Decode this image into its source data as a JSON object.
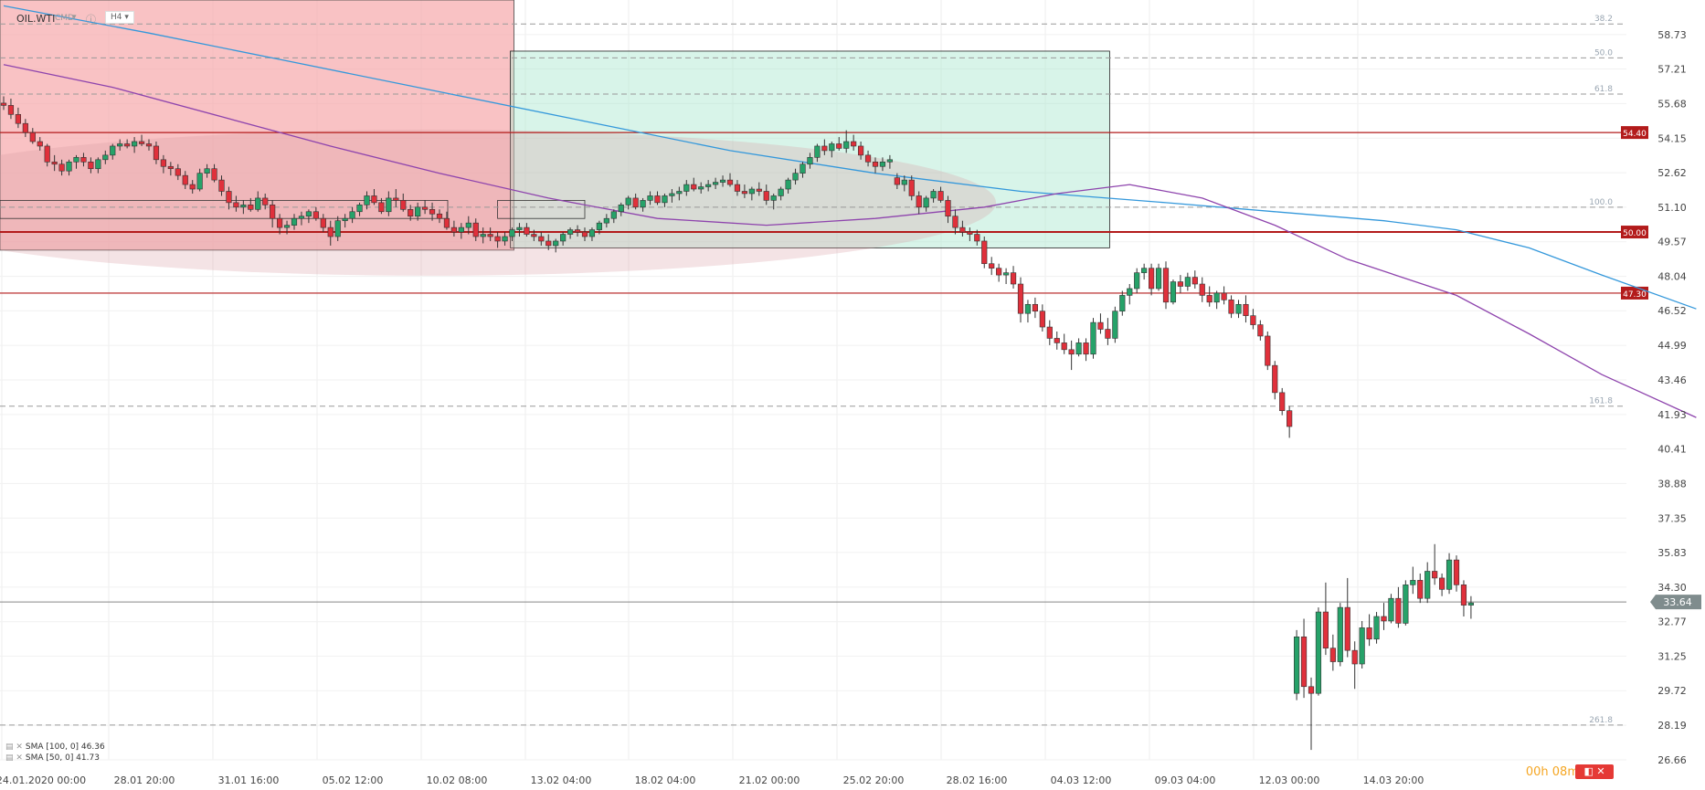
{
  "header": {
    "symbol": "OIL.WTI",
    "cmd": "CMD",
    "caret": "▾",
    "info": "ⓘ",
    "timeframe": "H4 ▾"
  },
  "legend": [
    {
      "label": "SMA [100, 0] 46.36"
    },
    {
      "label": "SMA [50, 0] 41.73"
    }
  ],
  "timer": {
    "text": "00h 08m"
  },
  "controls": {
    "text": "◧ ✕"
  },
  "colors": {
    "up": "#26a269",
    "down": "#e0303b",
    "sma100": "#3498db",
    "sma50": "#8e44ad",
    "level": "#b31b1b",
    "pricetag": "#7f8c8d"
  },
  "chart_data": {
    "type": "candlestick",
    "ylim": [
      26.66,
      60.26
    ],
    "yticks": [
      26.66,
      28.19,
      29.72,
      31.25,
      32.77,
      34.3,
      35.83,
      37.35,
      38.88,
      40.41,
      41.93,
      43.46,
      44.99,
      46.52,
      48.04,
      49.57,
      51.1,
      52.62,
      54.15,
      55.68,
      57.21,
      58.73
    ],
    "xticks": [
      "24.01.2020  00:00",
      "28.01  20:00",
      "31.01  16:00",
      "05.02  12:00",
      "10.02  08:00",
      "13.02  04:00",
      "18.02  04:00",
      "21.02  00:00",
      "25.02  20:00",
      "28.02  16:00",
      "04.03  12:00",
      "09.03  04:00",
      "12.03  00:00",
      "14.03  20:00"
    ],
    "last_price": 33.64,
    "levels": [
      54.4,
      50.0,
      47.3
    ],
    "level_labels": [
      "54.40",
      "50.00",
      "47.30"
    ],
    "fib": [
      {
        "label": "38.2",
        "value": 59.2
      },
      {
        "label": "50.0",
        "value": 57.7
      },
      {
        "label": "61.8",
        "value": 56.1
      },
      {
        "label": "100.0",
        "value": 51.1
      },
      {
        "label": "161.8",
        "value": 42.3
      },
      {
        "label": "261.8",
        "value": 28.2
      }
    ],
    "zones": [
      {
        "type": "sell",
        "from_index": 0,
        "to_index": 70,
        "high": 60.26,
        "low": 49.2
      },
      {
        "type": "buy",
        "from_index": 70,
        "to_index": 152,
        "high": 58.0,
        "low": 49.3
      }
    ],
    "series": [
      {
        "name": "SMA [100, 0] 46.36",
        "values": [
          [
            0,
            60.0
          ],
          [
            20,
            58.8
          ],
          [
            40,
            57.5
          ],
          [
            60,
            56.2
          ],
          [
            80,
            54.9
          ],
          [
            100,
            53.6
          ],
          [
            120,
            52.6
          ],
          [
            140,
            51.8
          ],
          [
            160,
            51.3
          ],
          [
            175,
            50.9
          ],
          [
            190,
            50.5
          ],
          [
            200,
            50.1
          ],
          [
            210,
            49.3
          ],
          [
            220,
            48.1
          ],
          [
            233,
            46.6
          ]
        ]
      },
      {
        "name": "SMA [50, 0] 41.73",
        "values": [
          [
            0,
            57.4
          ],
          [
            15,
            56.4
          ],
          [
            30,
            55.1
          ],
          [
            45,
            53.8
          ],
          [
            60,
            52.6
          ],
          [
            75,
            51.5
          ],
          [
            90,
            50.6
          ],
          [
            105,
            50.3
          ],
          [
            120,
            50.6
          ],
          [
            135,
            51.1
          ],
          [
            145,
            51.7
          ],
          [
            155,
            52.1
          ],
          [
            165,
            51.5
          ],
          [
            175,
            50.3
          ],
          [
            185,
            48.8
          ],
          [
            200,
            47.2
          ],
          [
            210,
            45.5
          ],
          [
            220,
            43.7
          ],
          [
            233,
            41.8
          ]
        ]
      }
    ],
    "ohlc": [
      [
        55.7,
        56.0,
        55.4,
        55.6
      ],
      [
        55.6,
        55.9,
        55.0,
        55.2
      ],
      [
        55.2,
        55.5,
        54.6,
        54.8
      ],
      [
        54.8,
        55.0,
        54.2,
        54.4
      ],
      [
        54.4,
        54.6,
        53.9,
        54.0
      ],
      [
        54.0,
        54.2,
        53.6,
        53.8
      ],
      [
        53.8,
        53.9,
        52.9,
        53.1
      ],
      [
        53.1,
        53.4,
        52.7,
        53.0
      ],
      [
        53.0,
        53.2,
        52.5,
        52.7
      ],
      [
        52.7,
        53.2,
        52.5,
        53.1
      ],
      [
        53.1,
        53.4,
        52.8,
        53.3
      ],
      [
        53.3,
        53.5,
        52.9,
        53.1
      ],
      [
        53.1,
        53.3,
        52.6,
        52.8
      ],
      [
        52.8,
        53.3,
        52.6,
        53.2
      ],
      [
        53.2,
        53.6,
        53.0,
        53.4
      ],
      [
        53.4,
        53.9,
        53.2,
        53.8
      ],
      [
        53.8,
        54.1,
        53.6,
        53.9
      ],
      [
        53.9,
        54.1,
        53.7,
        53.8
      ],
      [
        53.8,
        54.2,
        53.5,
        54.0
      ],
      [
        54.0,
        54.3,
        53.8,
        53.9
      ],
      [
        53.9,
        54.1,
        53.6,
        53.8
      ],
      [
        53.8,
        54.0,
        53.0,
        53.2
      ],
      [
        53.2,
        53.4,
        52.6,
        52.9
      ],
      [
        52.9,
        53.1,
        52.5,
        52.8
      ],
      [
        52.8,
        53.0,
        52.3,
        52.5
      ],
      [
        52.5,
        52.7,
        51.9,
        52.1
      ],
      [
        52.1,
        52.3,
        51.7,
        51.9
      ],
      [
        51.9,
        52.8,
        51.8,
        52.6
      ],
      [
        52.6,
        53.0,
        52.4,
        52.8
      ],
      [
        52.8,
        53.0,
        52.2,
        52.3
      ],
      [
        52.3,
        52.5,
        51.6,
        51.8
      ],
      [
        51.8,
        52.0,
        51.0,
        51.3
      ],
      [
        51.3,
        51.6,
        50.9,
        51.1
      ],
      [
        51.1,
        51.4,
        50.8,
        51.2
      ],
      [
        51.2,
        51.5,
        50.9,
        51.0
      ],
      [
        51.0,
        51.8,
        50.9,
        51.5
      ],
      [
        51.5,
        51.7,
        51.0,
        51.2
      ],
      [
        51.2,
        51.4,
        50.2,
        50.6
      ],
      [
        50.6,
        50.8,
        49.9,
        50.2
      ],
      [
        50.2,
        50.5,
        49.9,
        50.3
      ],
      [
        50.3,
        50.8,
        50.1,
        50.6
      ],
      [
        50.6,
        50.9,
        50.3,
        50.7
      ],
      [
        50.7,
        51.0,
        50.4,
        50.9
      ],
      [
        50.9,
        51.1,
        50.5,
        50.6
      ],
      [
        50.6,
        50.8,
        50.0,
        50.2
      ],
      [
        50.2,
        50.5,
        49.4,
        49.8
      ],
      [
        49.8,
        50.7,
        49.6,
        50.5
      ],
      [
        50.5,
        50.8,
        50.2,
        50.6
      ],
      [
        50.6,
        51.1,
        50.4,
        50.9
      ],
      [
        50.9,
        51.3,
        50.7,
        51.2
      ],
      [
        51.2,
        51.8,
        51.0,
        51.6
      ],
      [
        51.6,
        51.9,
        51.2,
        51.3
      ],
      [
        51.3,
        51.5,
        50.8,
        50.9
      ],
      [
        50.9,
        51.8,
        50.7,
        51.5
      ],
      [
        51.5,
        51.9,
        51.1,
        51.4
      ],
      [
        51.4,
        51.7,
        50.9,
        51.0
      ],
      [
        51.0,
        51.2,
        50.5,
        50.7
      ],
      [
        50.7,
        51.3,
        50.5,
        51.1
      ],
      [
        51.1,
        51.4,
        50.8,
        51.0
      ],
      [
        51.0,
        51.3,
        50.5,
        50.8
      ],
      [
        50.8,
        51.0,
        50.4,
        50.6
      ],
      [
        50.6,
        50.9,
        50.1,
        50.2
      ],
      [
        50.2,
        50.5,
        49.8,
        50.0
      ],
      [
        50.0,
        50.4,
        49.7,
        50.2
      ],
      [
        50.2,
        50.7,
        49.9,
        50.4
      ],
      [
        50.4,
        50.6,
        49.6,
        49.8
      ],
      [
        49.8,
        50.2,
        49.5,
        49.9
      ],
      [
        49.9,
        50.2,
        49.6,
        49.8
      ],
      [
        49.8,
        50.0,
        49.3,
        49.6
      ],
      [
        49.6,
        50.0,
        49.4,
        49.8
      ],
      [
        49.8,
        50.2,
        49.6,
        50.1
      ],
      [
        50.1,
        50.4,
        49.8,
        50.2
      ],
      [
        50.2,
        50.4,
        49.8,
        49.9
      ],
      [
        49.9,
        50.1,
        49.6,
        49.8
      ],
      [
        49.8,
        50.0,
        49.4,
        49.6
      ],
      [
        49.6,
        49.9,
        49.2,
        49.4
      ],
      [
        49.4,
        49.7,
        49.1,
        49.6
      ],
      [
        49.6,
        50.0,
        49.4,
        49.9
      ],
      [
        49.9,
        50.2,
        49.7,
        50.1
      ],
      [
        50.1,
        50.3,
        49.8,
        50.0
      ],
      [
        50.0,
        50.2,
        49.6,
        49.8
      ],
      [
        49.8,
        50.2,
        49.6,
        50.1
      ],
      [
        50.1,
        50.5,
        49.9,
        50.4
      ],
      [
        50.4,
        50.8,
        50.2,
        50.6
      ],
      [
        50.6,
        51.0,
        50.4,
        50.9
      ],
      [
        50.9,
        51.3,
        50.7,
        51.2
      ],
      [
        51.2,
        51.6,
        51.0,
        51.5
      ],
      [
        51.5,
        51.7,
        51.0,
        51.1
      ],
      [
        51.1,
        51.5,
        50.9,
        51.4
      ],
      [
        51.4,
        51.8,
        51.2,
        51.6
      ],
      [
        51.6,
        51.8,
        51.2,
        51.3
      ],
      [
        51.3,
        51.7,
        51.1,
        51.6
      ],
      [
        51.6,
        51.9,
        51.3,
        51.7
      ],
      [
        51.7,
        52.0,
        51.4,
        51.8
      ],
      [
        51.8,
        52.3,
        51.6,
        52.1
      ],
      [
        52.1,
        52.4,
        51.8,
        51.9
      ],
      [
        51.9,
        52.2,
        51.7,
        52.0
      ],
      [
        52.0,
        52.3,
        51.8,
        52.1
      ],
      [
        52.1,
        52.4,
        51.9,
        52.2
      ],
      [
        52.2,
        52.5,
        52.0,
        52.3
      ],
      [
        52.3,
        52.6,
        52.0,
        52.1
      ],
      [
        52.1,
        52.3,
        51.6,
        51.8
      ],
      [
        51.8,
        52.1,
        51.5,
        51.7
      ],
      [
        51.7,
        52.0,
        51.4,
        51.9
      ],
      [
        51.9,
        52.2,
        51.6,
        51.8
      ],
      [
        51.8,
        52.1,
        51.2,
        51.4
      ],
      [
        51.4,
        51.7,
        51.0,
        51.6
      ],
      [
        51.6,
        52.0,
        51.4,
        51.9
      ],
      [
        51.9,
        52.4,
        51.7,
        52.3
      ],
      [
        52.3,
        52.8,
        52.1,
        52.6
      ],
      [
        52.6,
        53.1,
        52.4,
        53.0
      ],
      [
        53.0,
        53.5,
        52.8,
        53.3
      ],
      [
        53.3,
        53.9,
        53.1,
        53.8
      ],
      [
        53.8,
        54.1,
        53.4,
        53.6
      ],
      [
        53.6,
        54.0,
        53.3,
        53.9
      ],
      [
        53.9,
        54.2,
        53.6,
        53.7
      ],
      [
        53.7,
        54.5,
        53.5,
        54.0
      ],
      [
        54.0,
        54.3,
        53.6,
        53.8
      ],
      [
        53.8,
        54.0,
        53.2,
        53.4
      ],
      [
        53.4,
        53.6,
        52.9,
        53.1
      ],
      [
        53.1,
        53.3,
        52.6,
        52.9
      ],
      [
        52.9,
        53.3,
        52.7,
        53.1
      ],
      [
        53.1,
        53.4,
        52.8,
        53.2
      ],
      [
        52.4,
        52.6,
        51.9,
        52.1
      ],
      [
        52.1,
        52.5,
        51.8,
        52.3
      ],
      [
        52.3,
        52.5,
        51.4,
        51.6
      ],
      [
        51.6,
        51.8,
        50.8,
        51.1
      ],
      [
        51.1,
        51.6,
        50.9,
        51.5
      ],
      [
        51.5,
        51.9,
        51.3,
        51.8
      ],
      [
        51.8,
        52.0,
        51.3,
        51.4
      ],
      [
        51.4,
        51.6,
        50.4,
        50.7
      ],
      [
        50.7,
        51.0,
        49.9,
        50.2
      ],
      [
        50.2,
        50.5,
        49.8,
        50.0
      ],
      [
        50.0,
        50.2,
        49.6,
        49.9
      ],
      [
        49.9,
        50.1,
        49.4,
        49.6
      ],
      [
        49.6,
        49.8,
        48.4,
        48.6
      ],
      [
        48.6,
        48.9,
        48.1,
        48.4
      ],
      [
        48.4,
        48.6,
        47.8,
        48.1
      ],
      [
        48.1,
        48.4,
        47.7,
        48.2
      ],
      [
        48.2,
        48.5,
        47.5,
        47.7
      ],
      [
        47.7,
        48.0,
        46.0,
        46.4
      ],
      [
        46.4,
        47.0,
        46.0,
        46.8
      ],
      [
        46.8,
        47.1,
        46.2,
        46.5
      ],
      [
        46.5,
        46.8,
        45.6,
        45.8
      ],
      [
        45.8,
        46.1,
        45.0,
        45.3
      ],
      [
        45.3,
        45.6,
        44.8,
        45.1
      ],
      [
        45.1,
        45.5,
        44.6,
        44.8
      ],
      [
        44.8,
        45.2,
        43.9,
        44.6
      ],
      [
        44.6,
        45.3,
        44.5,
        45.1
      ],
      [
        45.1,
        45.3,
        44.3,
        44.6
      ],
      [
        44.6,
        46.2,
        44.4,
        46.0
      ],
      [
        46.0,
        46.4,
        45.5,
        45.7
      ],
      [
        45.7,
        46.2,
        45.0,
        45.3
      ],
      [
        45.3,
        46.7,
        45.1,
        46.5
      ],
      [
        46.5,
        47.4,
        46.3,
        47.2
      ],
      [
        47.2,
        47.7,
        46.8,
        47.5
      ],
      [
        47.5,
        48.4,
        47.3,
        48.2
      ],
      [
        48.2,
        48.6,
        47.9,
        48.4
      ],
      [
        48.4,
        48.6,
        47.2,
        47.5
      ],
      [
        47.5,
        48.6,
        47.4,
        48.4
      ],
      [
        48.4,
        48.7,
        46.6,
        46.9
      ],
      [
        46.9,
        47.9,
        46.8,
        47.8
      ],
      [
        47.8,
        48.1,
        47.3,
        47.6
      ],
      [
        47.6,
        48.2,
        47.4,
        48.0
      ],
      [
        48.0,
        48.3,
        47.5,
        47.7
      ],
      [
        47.7,
        48.0,
        46.9,
        47.2
      ],
      [
        47.2,
        47.6,
        46.7,
        46.9
      ],
      [
        46.9,
        47.4,
        46.6,
        47.3
      ],
      [
        47.3,
        47.6,
        46.8,
        47.0
      ],
      [
        47.0,
        47.2,
        46.2,
        46.4
      ],
      [
        46.4,
        47.0,
        46.2,
        46.8
      ],
      [
        46.8,
        47.2,
        46.0,
        46.3
      ],
      [
        46.3,
        46.6,
        45.7,
        45.9
      ],
      [
        45.9,
        46.1,
        45.2,
        45.4
      ],
      [
        45.4,
        45.6,
        43.9,
        44.1
      ],
      [
        44.1,
        44.3,
        42.6,
        42.9
      ],
      [
        42.9,
        43.1,
        41.9,
        42.1
      ],
      [
        42.1,
        42.3,
        40.9,
        41.4
      ],
      [
        29.6,
        32.4,
        29.3,
        32.1
      ],
      [
        32.1,
        32.9,
        29.4,
        29.9
      ],
      [
        29.9,
        30.3,
        27.1,
        29.6
      ],
      [
        29.6,
        33.4,
        29.5,
        33.2
      ],
      [
        33.2,
        34.5,
        31.3,
        31.6
      ],
      [
        31.6,
        32.2,
        30.6,
        31.0
      ],
      [
        31.0,
        33.6,
        30.8,
        33.4
      ],
      [
        33.4,
        34.7,
        31.2,
        31.5
      ],
      [
        31.5,
        31.9,
        29.8,
        30.9
      ],
      [
        30.9,
        32.8,
        30.7,
        32.5
      ],
      [
        32.5,
        33.1,
        31.7,
        32.0
      ],
      [
        32.0,
        33.2,
        31.8,
        33.0
      ],
      [
        33.0,
        33.6,
        32.4,
        32.8
      ],
      [
        32.8,
        34.0,
        32.7,
        33.8
      ],
      [
        33.8,
        34.3,
        32.5,
        32.7
      ],
      [
        32.7,
        34.6,
        32.6,
        34.4
      ],
      [
        34.4,
        35.2,
        34.0,
        34.6
      ],
      [
        34.6,
        34.9,
        33.6,
        33.8
      ],
      [
        33.8,
        35.4,
        33.6,
        35.0
      ],
      [
        35.0,
        36.2,
        34.4,
        34.7
      ],
      [
        34.7,
        34.9,
        33.9,
        34.2
      ],
      [
        34.2,
        35.8,
        34.0,
        35.5
      ],
      [
        35.5,
        35.7,
        34.1,
        34.4
      ],
      [
        34.4,
        34.6,
        33.0,
        33.5
      ],
      [
        33.5,
        33.9,
        32.9,
        33.6
      ]
    ]
  }
}
